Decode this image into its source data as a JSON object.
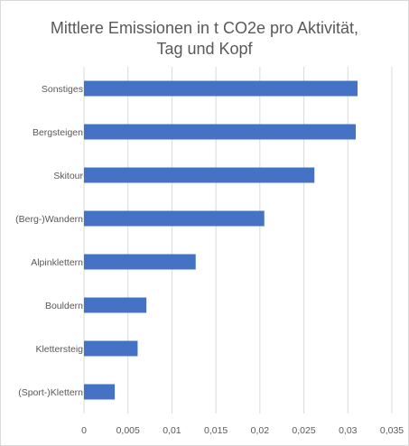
{
  "chart_data": {
    "type": "bar",
    "orientation": "horizontal",
    "title": "Mittlere Emissionen in  t CO2e pro Aktivität,\nTag und Kopf",
    "xlabel": "",
    "ylabel": "",
    "categories": [
      "Sonstiges",
      "Bergsteigen",
      "Skitour",
      "(Berg-)Wandern",
      "Alpinklettern",
      "Bouldern",
      "Klettersteig",
      "(Sport-)Klettern"
    ],
    "values": [
      0.0311,
      0.0309,
      0.0262,
      0.0205,
      0.0127,
      0.0071,
      0.0061,
      0.0035
    ],
    "xlim": [
      0,
      0.035
    ],
    "xticks": [
      "0",
      "0,005",
      "0,01",
      "0,015",
      "0,02",
      "0,025",
      "0,03",
      "0,035"
    ],
    "grid": "vertical",
    "legend": "none",
    "bar_color": "#4472c4",
    "grid_color": "#d9d9d9",
    "text_color": "#595959"
  }
}
